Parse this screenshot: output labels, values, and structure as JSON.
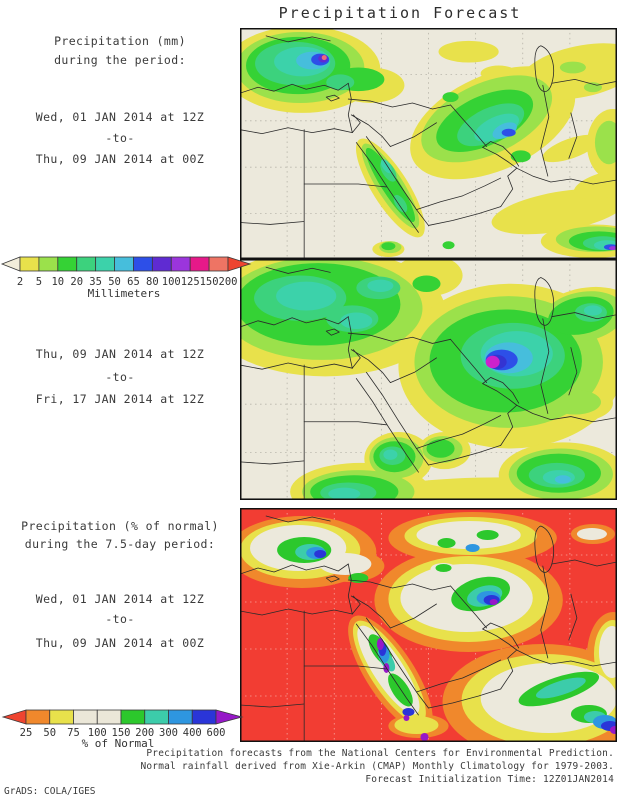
{
  "title": "Precipitation Forecast",
  "panels": [
    {
      "heading_line1": "Precipitation (mm)",
      "heading_line2": "during the period:",
      "period_start": "Wed, 01 JAN 2014 at 12Z",
      "period_separator": "-to-",
      "period_end": "Thu, 09 JAN 2014 at 00Z"
    },
    {
      "period_start": "Thu, 09 JAN 2014 at 12Z",
      "period_separator": "-to-",
      "period_end": "Fri, 17 JAN 2014 at 12Z"
    },
    {
      "heading_line1": "Precipitation (% of normal)",
      "heading_line2": "during the 7.5-day period:",
      "period_start": "Wed, 01 JAN 2014 at 12Z",
      "period_separator": "-to-",
      "period_end": "Thu, 09 JAN 2014 at 00Z"
    }
  ],
  "colorbars": [
    {
      "unit": "Millimeters",
      "boundary_labels": [
        "2",
        "5",
        "10",
        "20",
        "35",
        "50",
        "65",
        "80",
        "100",
        "125",
        "150",
        "200"
      ],
      "segment_colors": [
        "#e8e14b",
        "#9be14b",
        "#35d235",
        "#3cd27d",
        "#3cd2aa",
        "#46bedc",
        "#2d4fe8",
        "#5f2bd2",
        "#9b35dc",
        "#e61989",
        "#ee7464"
      ],
      "left_arrow_color": "#f2edda",
      "right_arrow_color": "#ee4430"
    },
    {
      "unit": "% of Normal",
      "boundary_labels": [
        "25",
        "50",
        "75",
        "100",
        "150",
        "200",
        "300",
        "400",
        "600"
      ],
      "segment_colors": [
        "#f0882c",
        "#e8e14b",
        "#ebe7d8",
        "#ebe7d8",
        "#2cc82c",
        "#3cccaa",
        "#2e96e0",
        "#2a35d8"
      ],
      "left_arrow_color": "#ee4430",
      "right_arrow_color": "#9618c8"
    }
  ],
  "map_colors": {
    "land": "#ece9dc",
    "below_normal_red": "#f23d33",
    "frame": "#111111",
    "grid": "#b6b4a9"
  },
  "footer": {
    "line1": "Precipitation forecasts from the National Centers for Environmental Prediction.",
    "line2": "Normal rainfall derived from Xie-Arkin (CMAP) Monthly Climatology for 1979-2003.",
    "line3": "Forecast Initialization Time: 12Z01JAN2014",
    "credit": "GrADS: COLA/IGES"
  }
}
